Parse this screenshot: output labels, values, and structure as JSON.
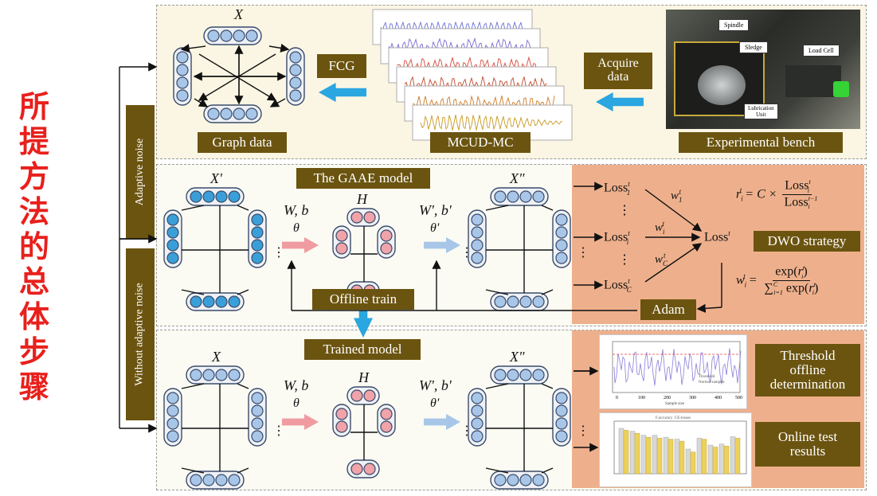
{
  "side_title": [
    "所",
    "提",
    "方",
    "法",
    "的",
    "总",
    "体",
    "步",
    "骤"
  ],
  "left_labels": {
    "adaptive": "Adaptive noise",
    "without": "Without adaptive noise"
  },
  "top": {
    "x_label": "X",
    "fcg": "FCG",
    "graph_data": "Graph data",
    "mcud": "MCUD-MC",
    "acquire": [
      "Acquire",
      "data"
    ],
    "bench": "Experimental bench",
    "photo_labels": {
      "spindle": "Spindle",
      "sledge": "Sledge",
      "load_cell": "Load Cell",
      "lube": "Lubrication\nUnit"
    }
  },
  "middle": {
    "title": "The GAAE model",
    "x_prime": "X'",
    "h": "H",
    "x_dprime": "X\"",
    "wb": "W, b",
    "theta": "θ",
    "wb_prime": "W', b'",
    "theta_prime": "θ'",
    "offline": "Offline train",
    "adam": "Adam",
    "dwo": "DWO strategy",
    "loss1": "Loss",
    "loss_sup": "t",
    "loss_sub_1": "1",
    "loss_sub_i": "i",
    "loss_sub_c": "C",
    "loss_total": "Losst",
    "w1": "w",
    "formula1": "rᵢᵗ = C × Lossᵢᵗ / Lossᵢᵗ⁻¹",
    "formula2": "wᵢᵗ = exp(rᵢᵗ) / ∑ exp(rᵢᵗ)"
  },
  "bottom": {
    "title": "Trained model",
    "x": "X",
    "h": "H",
    "x_dprime": "X\"",
    "wb": "W, b",
    "theta": "θ",
    "wb_prime": "W', b'",
    "theta_prime": "θ'",
    "threshold": [
      "Threshold",
      "offline",
      "determination"
    ],
    "online": [
      "Online test",
      "results"
    ],
    "chart1_legend": [
      "Threshold",
      "Normal samples"
    ],
    "chart1_x_ticks": [
      "0",
      "100",
      "200",
      "300",
      "400",
      "500"
    ],
    "chart1_xlabel": "Sample size",
    "chart2_legend": [
      "F.accuracy",
      "CE-losses"
    ]
  },
  "colors": {
    "tag_bg": "#6b5410",
    "orange": "#eeb08c",
    "node_blue": "#3a9fd8",
    "node_pale": "#a8c6e8",
    "node_pink": "#f0a3a8",
    "arrow_blue": "#2aa6e0",
    "arrow_pink": "#f09ba0"
  }
}
